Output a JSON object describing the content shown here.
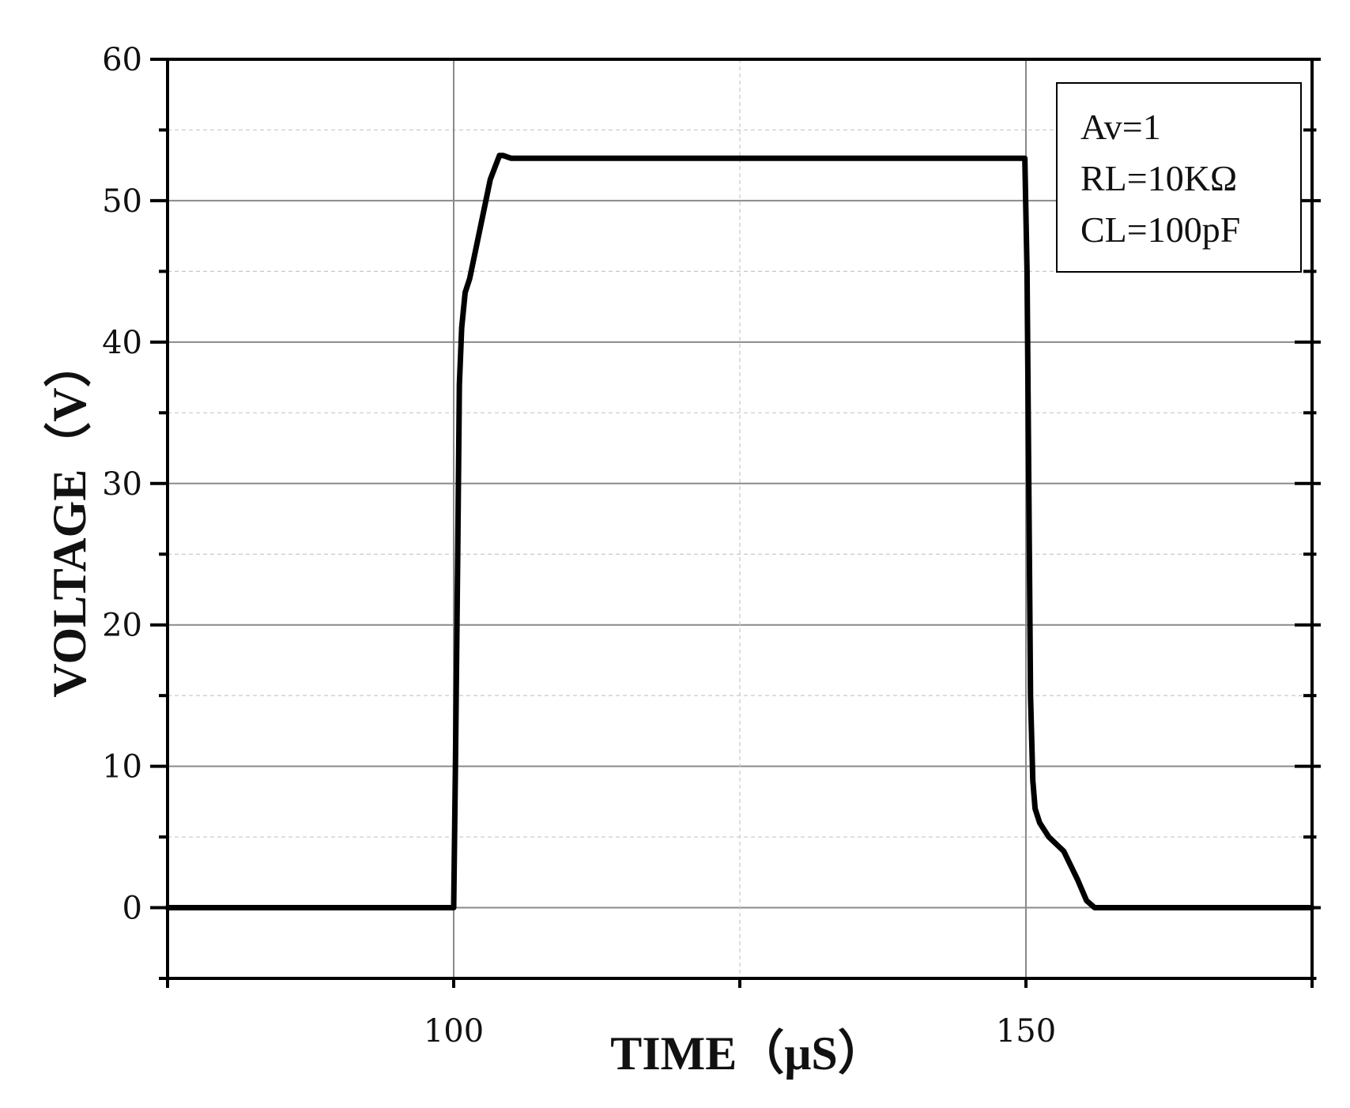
{
  "chart_data": {
    "type": "line",
    "title": "",
    "xlabel": "TIME（μS）",
    "ylabel": "VOLTAGE（V）",
    "xlim": [
      75,
      175
    ],
    "ylim": [
      -5,
      60
    ],
    "x_ticks": [
      100,
      150
    ],
    "y_ticks": [
      0,
      10,
      20,
      30,
      40,
      50,
      60
    ],
    "grid": true,
    "legend_position": "top-right",
    "annotations": [
      "Av=1",
      "RL=10KΩ",
      "CL=100pF"
    ],
    "series": [
      {
        "color": "#000000",
        "x": [
          75,
          100.0,
          100.15,
          100.35,
          100.5,
          100.7,
          101.0,
          101.4,
          102.3,
          103.2,
          104.0,
          104.3,
          105.0,
          110,
          120,
          130,
          140,
          149.9,
          150.1,
          150.25,
          150.4,
          150.6,
          150.8,
          151.2,
          152.0,
          153.3,
          154.5,
          155.3,
          156.0,
          160,
          175
        ],
        "y": [
          0,
          0,
          10,
          25,
          37,
          41,
          43.5,
          44.5,
          48,
          51.5,
          53.2,
          53.2,
          53.0,
          53,
          53,
          53,
          53,
          53,
          45,
          30,
          15,
          9,
          7,
          6,
          5,
          4,
          2,
          0.5,
          0,
          0,
          0
        ]
      }
    ]
  }
}
